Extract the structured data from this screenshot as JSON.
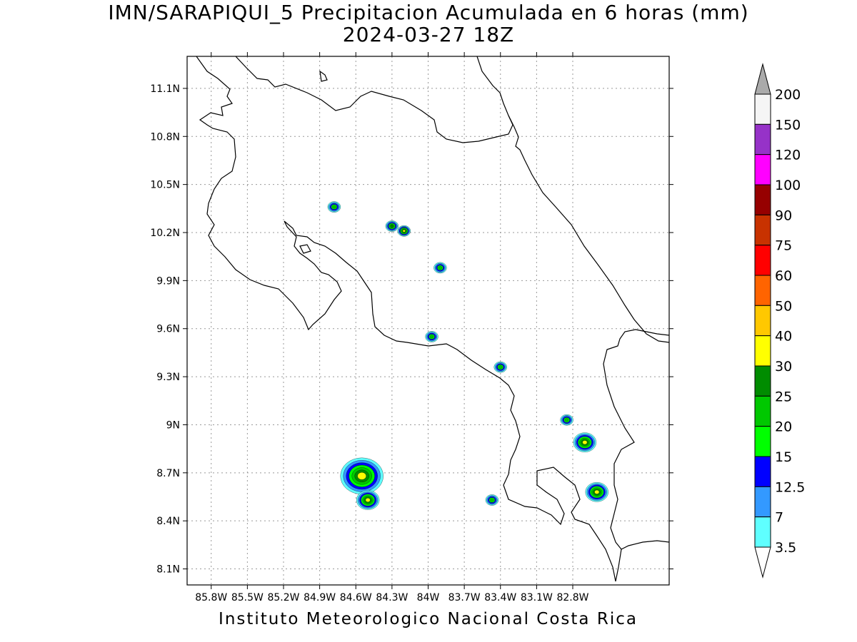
{
  "title": {
    "line1": "IMN/SARAPIQUI_5 Precipitacion Acumulada en 6 horas (mm)",
    "line2": "2024-03-27 18Z"
  },
  "footer": "Instituto Meteorologico Nacional Costa Rica",
  "axes": {
    "lon_range": [
      -86.0,
      -82.0
    ],
    "lat_range": [
      8.0,
      11.3
    ],
    "lon_ticks": [
      "85.8W",
      "85.5W",
      "85.2W",
      "84.9W",
      "84.6W",
      "84.3W",
      "84W",
      "83.7W",
      "83.4W",
      "83.1W",
      "82.8W"
    ],
    "lat_ticks": [
      "8.1N",
      "8.4N",
      "8.7N",
      "9N",
      "9.3N",
      "9.6N",
      "9.9N",
      "10.2N",
      "10.5N",
      "10.8N",
      "11.1N"
    ]
  },
  "colorbar": {
    "labels": [
      "3.5",
      "7",
      "12.5",
      "15",
      "20",
      "25",
      "30",
      "40",
      "50",
      "60",
      "75",
      "90",
      "100",
      "120",
      "150",
      "200"
    ],
    "colors": [
      "#ffffff",
      "#5fffff",
      "#3399ff",
      "#0000ff",
      "#00ff00",
      "#00c800",
      "#008c00",
      "#ffff00",
      "#ffc800",
      "#ff6400",
      "#ff0000",
      "#c83200",
      "#960000",
      "#ff00ff",
      "#9632c8",
      "#f5f5f5"
    ],
    "over_color": "#aaaaaa",
    "under_color": "#ffffff"
  },
  "precip_cells": [
    {
      "lon": -84.55,
      "lat": 8.68,
      "peak": "40",
      "size": "large"
    },
    {
      "lon": -84.5,
      "lat": 8.53,
      "peak": "40",
      "size": "medium"
    },
    {
      "lon": -84.3,
      "lat": 10.24,
      "peak": "30",
      "size": "small"
    },
    {
      "lon": -84.2,
      "lat": 10.21,
      "peak": "40",
      "size": "small"
    },
    {
      "lon": -84.78,
      "lat": 10.36,
      "peak": "25",
      "size": "small"
    },
    {
      "lon": -83.9,
      "lat": 9.98,
      "peak": "25",
      "size": "small"
    },
    {
      "lon": -83.97,
      "lat": 9.55,
      "peak": "25",
      "size": "small"
    },
    {
      "lon": -83.4,
      "lat": 9.36,
      "peak": "25",
      "size": "small"
    },
    {
      "lon": -82.85,
      "lat": 9.03,
      "peak": "25",
      "size": "small"
    },
    {
      "lon": -82.7,
      "lat": 8.89,
      "peak": "40",
      "size": "medium"
    },
    {
      "lon": -82.6,
      "lat": 8.58,
      "peak": "40",
      "size": "medium"
    },
    {
      "lon": -83.47,
      "lat": 8.53,
      "peak": "25",
      "size": "small"
    }
  ]
}
